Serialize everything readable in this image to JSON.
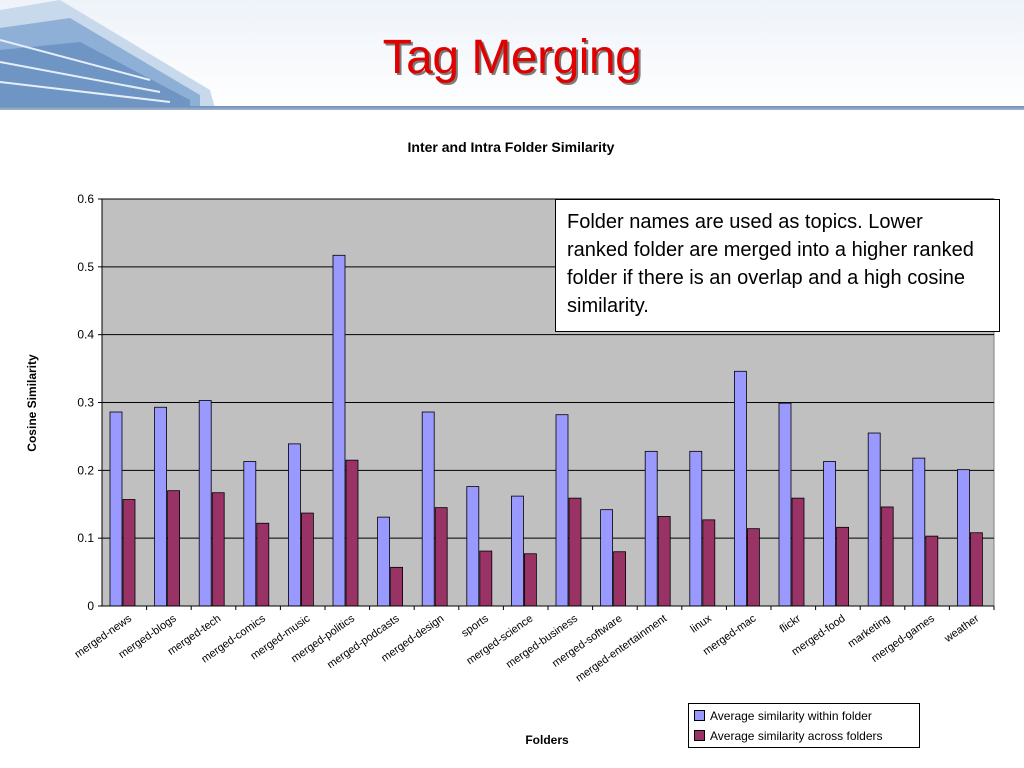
{
  "slide": {
    "title": "Tag Merging",
    "callout": "Folder names are used as topics. Lower ranked folder are merged into a higher ranked folder if there is an overlap and a high cosine similarity."
  },
  "colors": {
    "title": "#e00000",
    "plot_background": "#c0c0c0",
    "series_within": "#9999ff",
    "series_across": "#993366"
  },
  "chart_data": {
    "type": "bar",
    "title": "Inter and Intra Folder Similarity",
    "xlabel": "Folders",
    "ylabel": "Cosine Similarity",
    "ylim": [
      0,
      0.6
    ],
    "yticks": [
      0,
      0.1,
      0.2,
      0.3,
      0.4,
      0.5,
      0.6
    ],
    "ytick_labels": [
      "0",
      "0.1",
      "0.2",
      "0.3",
      "0.4",
      "0.5",
      "0.6"
    ],
    "grid": "horizontal",
    "legend_position": "bottom-right",
    "categories": [
      "merged-news",
      "merged-blogs",
      "merged-tech",
      "merged-comics",
      "merged-music",
      "merged-politics",
      "merged-podcasts",
      "merged-design",
      "sports",
      "merged-science",
      "merged-business",
      "merged-software",
      "merged-entertainment",
      "linux",
      "merged-mac",
      "flickr",
      "merged-food",
      "marketing",
      "merged-games",
      "weather"
    ],
    "series": [
      {
        "name": "Average similarity within folder",
        "color": "#9999ff",
        "values": [
          0.286,
          0.293,
          0.303,
          0.213,
          0.239,
          0.517,
          0.131,
          0.286,
          0.176,
          0.162,
          0.282,
          0.142,
          0.228,
          0.228,
          0.346,
          0.299,
          0.213,
          0.255,
          0.218,
          0.201
        ]
      },
      {
        "name": "Average similarity across folders",
        "color": "#993366",
        "values": [
          0.157,
          0.17,
          0.167,
          0.122,
          0.137,
          0.215,
          0.057,
          0.145,
          0.081,
          0.077,
          0.159,
          0.08,
          0.132,
          0.127,
          0.114,
          0.159,
          0.116,
          0.146,
          0.103,
          0.108
        ]
      }
    ]
  }
}
